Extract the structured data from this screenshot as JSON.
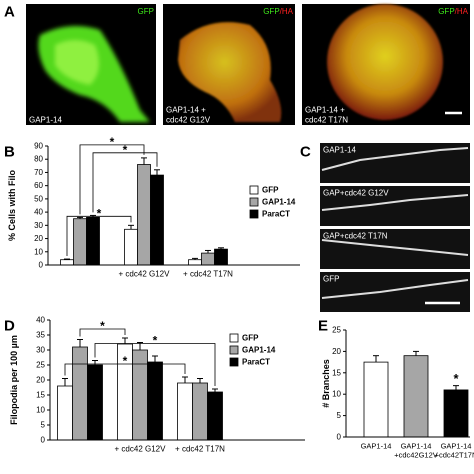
{
  "panel_labels": [
    "A",
    "B",
    "C",
    "D",
    "E"
  ],
  "panel_a": [
    {
      "top": [
        "GFP"
      ],
      "bottom": [
        "GAP1-14"
      ]
    },
    {
      "top": [
        "GFP",
        "/HA"
      ],
      "bottom": [
        "GAP1-14 +",
        "cdc42 G12V"
      ]
    },
    {
      "top": [
        "GFP",
        "/HA"
      ],
      "bottom": [
        "GAP1-14 +",
        "cdc42 T17N"
      ]
    }
  ],
  "panel_c": [
    "GAP1-14",
    "GAP+cdc42 G12V",
    "GAP+cdc42 T17N",
    "GFP"
  ],
  "chart_data": [
    {
      "type": "grouped_bar",
      "y_label": "% Cells with Filo",
      "categories": [
        null,
        "+ cdc42 G12V",
        "+ cdc42 T17N"
      ],
      "series": [
        {
          "name": "GFP",
          "color": "#ffffff",
          "values": [
            4,
            27,
            4
          ],
          "errors": [
            0.5,
            3,
            1
          ]
        },
        {
          "name": "GAP1-14",
          "color": "#a6a6a6",
          "values": [
            35,
            76,
            9
          ],
          "errors": [
            1,
            5,
            2
          ]
        },
        {
          "name": "ParaCT",
          "color": "#000000",
          "values": [
            36,
            68,
            12
          ],
          "errors": [
            1.5,
            4,
            1
          ]
        }
      ],
      "ylim": [
        0,
        90
      ],
      "yticks": [
        0,
        10,
        20,
        30,
        40,
        50,
        60,
        70,
        80,
        90
      ],
      "legend": "right",
      "comparisons": [
        {
          "a": [
            0,
            0
          ],
          "b": [
            1,
            0
          ],
          "label": "*"
        },
        {
          "a": [
            0,
            1
          ],
          "b": [
            1,
            1
          ],
          "label": "*"
        },
        {
          "a": [
            0,
            2
          ],
          "b": [
            1,
            2
          ],
          "label": "*"
        }
      ]
    },
    {
      "type": "grouped_bar",
      "y_label": "Filopodia per 100 µm",
      "categories": [
        null,
        "+ cdc42 G12V",
        "+ cdc42 T17N"
      ],
      "series": [
        {
          "name": "GFP",
          "color": "#ffffff",
          "values": [
            18,
            32,
            19
          ],
          "errors": [
            2.5,
            2,
            2
          ]
        },
        {
          "name": "GAP1-14",
          "color": "#a6a6a6",
          "values": [
            31,
            30,
            19
          ],
          "errors": [
            2.5,
            2.5,
            1.5
          ]
        },
        {
          "name": "ParaCT",
          "color": "#000000",
          "values": [
            25,
            26,
            16
          ],
          "errors": [
            1.5,
            2,
            1
          ]
        }
      ],
      "ylim": [
        0,
        40
      ],
      "yticks": [
        0,
        5,
        10,
        15,
        20,
        25,
        30,
        35,
        40
      ],
      "legend": "upper right",
      "comparisons": [
        {
          "a": [
            0,
            1
          ],
          "b": [
            1,
            0
          ],
          "label": "*"
        },
        {
          "a": [
            0,
            0
          ],
          "b": [
            2,
            0
          ],
          "label": "*"
        },
        {
          "a": [
            0,
            2
          ],
          "b": [
            2,
            2
          ],
          "label": "*"
        }
      ]
    },
    {
      "type": "bar",
      "y_label": "# Branches",
      "categories": [
        [
          "GAP1-14"
        ],
        [
          "GAP1-14",
          "+cdc42G12V"
        ],
        [
          "GAP1-14",
          "+cdc42T17N"
        ]
      ],
      "values": [
        17.5,
        19,
        11
      ],
      "errors": [
        1.5,
        1,
        1
      ],
      "colors": [
        "#ffffff",
        "#a6a6a6",
        "#000000"
      ],
      "ylim": [
        0,
        25
      ],
      "yticks": [
        0,
        5,
        10,
        15,
        20,
        25
      ],
      "annotations": [
        {
          "category": 2,
          "label": "*"
        }
      ]
    }
  ]
}
